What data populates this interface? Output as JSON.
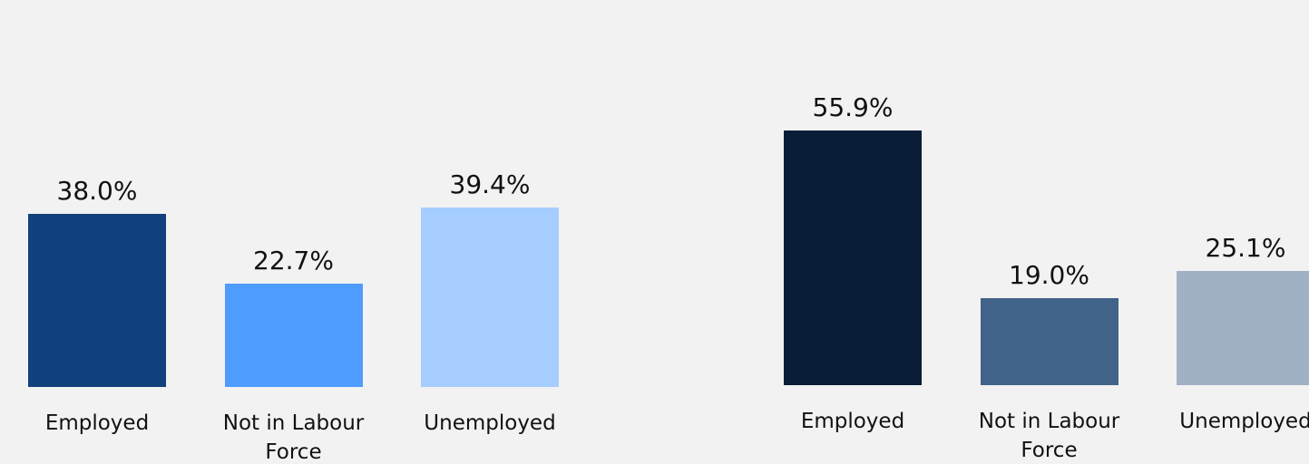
{
  "chart_data": [
    {
      "type": "bar",
      "categories": [
        "Employed",
        "Not in Labour Force",
        "Unemployed"
      ],
      "values": [
        38.0,
        22.7,
        39.4
      ],
      "value_labels": [
        "38.0%",
        "22.7%",
        "39.4%"
      ],
      "colors": [
        "#11417c",
        "#4f9cff",
        "#a6cdff"
      ]
    },
    {
      "type": "bar",
      "categories": [
        "Employed",
        "Not in Labour Force",
        "Unemployed"
      ],
      "values": [
        55.9,
        19.0,
        25.1
      ],
      "value_labels": [
        "55.9%",
        "19.0%",
        "25.1%"
      ],
      "colors": [
        "#0a1d37",
        "#416289",
        "#a0b1c6"
      ]
    }
  ]
}
